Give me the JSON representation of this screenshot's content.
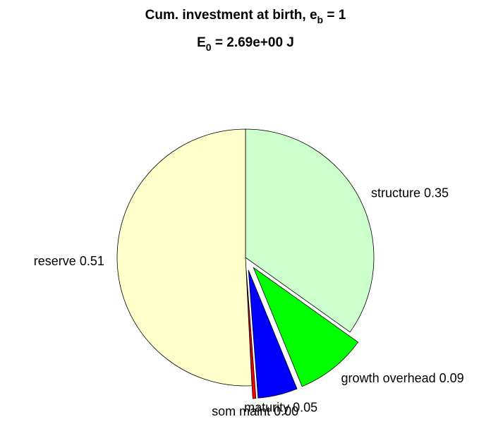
{
  "chart_data": {
    "type": "pie",
    "title": [
      "Cum. investment at birth, e",
      "b",
      " = 1"
    ],
    "subtitle": [
      "E",
      "0",
      " = 2.69e+00 J"
    ],
    "categories": [
      "structure",
      "growth overhead",
      "maturity",
      "som maint",
      "reserve"
    ],
    "values": [
      0.35,
      0.09,
      0.05,
      0.004,
      0.51
    ],
    "value_labels": [
      "0.35",
      "0.09",
      "0.05",
      "0.00",
      "0.51"
    ],
    "colors": [
      "#ccffcc",
      "#00ff00",
      "#0000ff",
      "#ff0000",
      "#ffffcc"
    ],
    "explode": [
      0,
      1,
      1,
      1,
      0
    ]
  }
}
